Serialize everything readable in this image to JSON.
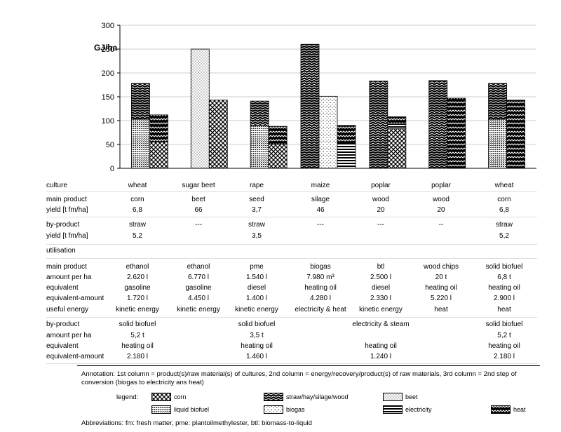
{
  "chart_data": {
    "type": "bar",
    "ylabel": "GJ/ha",
    "ylim": [
      0,
      300
    ],
    "yticks": [
      "0",
      "50",
      "100",
      "150",
      "200",
      "250",
      "300"
    ],
    "categories": [
      "wheat",
      "sugar beet",
      "rape",
      "maize",
      "poplar",
      "poplar",
      "wheat"
    ],
    "groups": [
      {
        "bars": [
          {
            "segments": [
              {
                "pattern": "liquid",
                "value": 103
              },
              {
                "pattern": "straw",
                "value": 75
              }
            ]
          },
          {
            "segments": [
              {
                "pattern": "corn",
                "value": 55
              },
              {
                "pattern": "heat",
                "value": 57
              }
            ]
          }
        ]
      },
      {
        "bars": [
          {
            "segments": [
              {
                "pattern": "beet",
                "value": 250
              }
            ]
          },
          {
            "segments": [
              {
                "pattern": "corn",
                "value": 143
              }
            ]
          }
        ]
      },
      {
        "bars": [
          {
            "segments": [
              {
                "pattern": "liquid",
                "value": 90
              },
              {
                "pattern": "straw",
                "value": 51
              }
            ]
          },
          {
            "segments": [
              {
                "pattern": "corn",
                "value": 50
              },
              {
                "pattern": "heat",
                "value": 38
              }
            ]
          }
        ]
      },
      {
        "bars": [
          {
            "segments": [
              {
                "pattern": "straw",
                "value": 260
              }
            ]
          },
          {
            "segments": [
              {
                "pattern": "biogas",
                "value": 151
              }
            ]
          },
          {
            "segments": [
              {
                "pattern": "electricity",
                "value": 52
              },
              {
                "pattern": "heat",
                "value": 38
              }
            ]
          }
        ]
      },
      {
        "bars": [
          {
            "segments": [
              {
                "pattern": "straw",
                "value": 183
              }
            ]
          },
          {
            "segments": [
              {
                "pattern": "corn",
                "value": 83
              },
              {
                "pattern": "electricity",
                "value": 10
              },
              {
                "pattern": "heat",
                "value": 15
              }
            ]
          }
        ]
      },
      {
        "bars": [
          {
            "segments": [
              {
                "pattern": "straw",
                "value": 184
              }
            ]
          },
          {
            "segments": [
              {
                "pattern": "heat",
                "value": 147
              }
            ]
          }
        ]
      },
      {
        "bars": [
          {
            "segments": [
              {
                "pattern": "liquid",
                "value": 103
              },
              {
                "pattern": "straw",
                "value": 75
              }
            ]
          },
          {
            "segments": [
              {
                "pattern": "heat",
                "value": 143
              }
            ]
          }
        ]
      }
    ]
  },
  "table": {
    "rows": [
      {
        "label": "culture",
        "cells": [
          "wheat",
          "sugar beet",
          "rape",
          "maize",
          "poplar",
          "poplar",
          "wheat"
        ]
      },
      {
        "label": "main product",
        "cells": [
          "corn",
          "beet",
          "seed",
          "silage",
          "wood",
          "wood",
          "corn"
        ]
      },
      {
        "label": "yield [t fm/ha]",
        "cells": [
          "6,8",
          "66",
          "3,7",
          "46",
          "20",
          "20",
          "6,8"
        ]
      },
      {
        "label": "by-product",
        "cells": [
          "straw",
          "---",
          "straw",
          "---",
          "---",
          "--",
          "straw"
        ]
      },
      {
        "label": "yield [t fm/ha]",
        "cells": [
          "5,2",
          "",
          "3,5",
          "",
          "",
          "",
          "5,2"
        ]
      },
      {
        "label": "utilisation",
        "cells": [
          "",
          "",
          "",
          "",
          "",
          "",
          ""
        ]
      },
      {
        "label": "main product",
        "cells": [
          "ethanol",
          "ethanol",
          "pme",
          "biogas",
          "btl",
          "wood chips",
          "solid biofuel"
        ]
      },
      {
        "label": "amount per ha",
        "cells": [
          "2.620 l",
          "6.770 l",
          "1.540 l",
          "7.980 m³",
          "2.500 l",
          "20 t",
          "6,8 t"
        ]
      },
      {
        "label": "equivalent",
        "cells": [
          "gasoline",
          "gasoline",
          "diesel",
          "heating oil",
          "diesel",
          "heating oil",
          "heating oil"
        ]
      },
      {
        "label": "equivalent-amount",
        "cells": [
          "1.720 l",
          "4.450 l",
          "1.400 l",
          "4.280 l",
          "2.330 l",
          "5.220 l",
          "2.900 l"
        ]
      },
      {
        "label": "useful energy",
        "cells": [
          "kinetic energy",
          "kinetic energy",
          "kinetic energy",
          "electricity & heat",
          "kinetic energy",
          "heat",
          "heat"
        ]
      },
      {
        "label": "by-product",
        "cells": [
          "solid biofuel",
          "",
          "solid biofuel",
          "",
          "electricity & steam",
          "",
          "solid biofuel"
        ]
      },
      {
        "label": "amount per ha",
        "cells": [
          "5,2 t",
          "",
          "3,5 t",
          "",
          "",
          "",
          "5,2 t"
        ]
      },
      {
        "label": "equivalent",
        "cells": [
          "heating oil",
          "",
          "heating oil",
          "",
          "heating oil",
          "",
          "heating oil"
        ]
      },
      {
        "label": "equivalent-amount",
        "cells": [
          "2.180 l",
          "",
          "1.460 l",
          "",
          "1.240 l",
          "",
          "2.180 l"
        ]
      }
    ]
  },
  "annotation": "Annotation:  1st column = product(s)/raw material(s) of cultures, 2nd column = energy/recovery/product(s) of raw materials, 3rd column = 2nd step of conversion (biogas to electricity ans heat)",
  "legend": {
    "label": "legend:",
    "items": [
      {
        "pattern": "corn",
        "label": "corn"
      },
      {
        "pattern": "straw",
        "label": "straw/hay/silage/wood"
      },
      {
        "pattern": "beet",
        "label": "beet"
      },
      {
        "pattern": "liquid",
        "label": "liquid biofuel"
      },
      {
        "pattern": "biogas",
        "label": "biogas"
      },
      {
        "pattern": "electricity",
        "label": "electricity"
      },
      {
        "pattern": "heat",
        "label": "heat"
      }
    ]
  },
  "abbreviations": "Abbreviations: fm: fresh matter, pme: plantoilmethylester, btl: biomass-to-liquid"
}
